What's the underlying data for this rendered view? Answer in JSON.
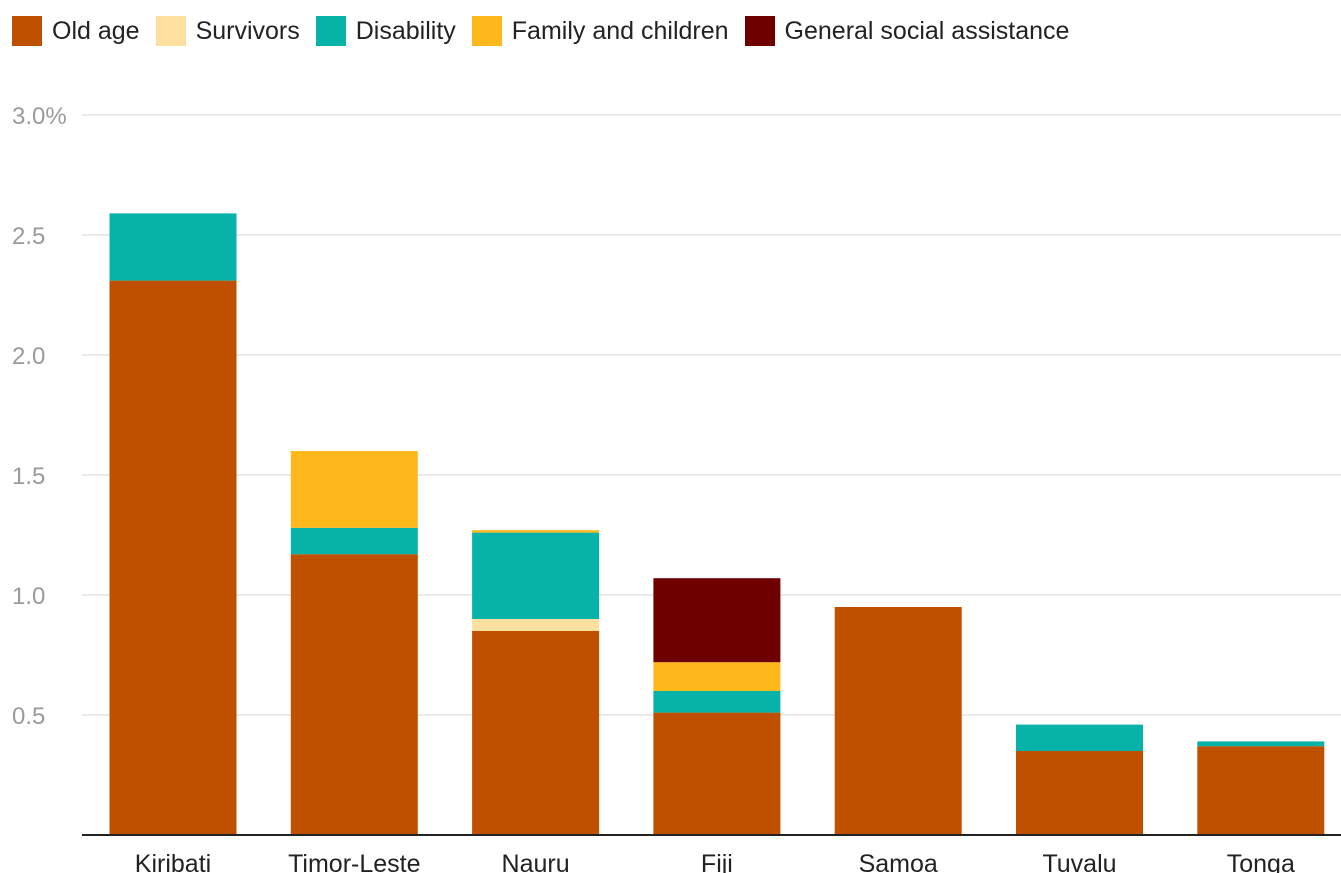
{
  "chart_data": {
    "type": "bar",
    "stacked": true,
    "title": "",
    "xlabel": "",
    "ylabel": "",
    "categories": [
      "Kiribati",
      "Timor-Leste",
      "Nauru",
      "Fiji",
      "Samoa",
      "Tuvalu",
      "Tonga"
    ],
    "series": [
      {
        "name": "Old age",
        "color": "#BF5000",
        "values": [
          2.31,
          1.17,
          0.85,
          0.51,
          0.95,
          0.35,
          0.37
        ]
      },
      {
        "name": "Survivors",
        "color": "#FDE0A0",
        "values": [
          0,
          0,
          0.05,
          0,
          0,
          0,
          0
        ]
      },
      {
        "name": "Disability",
        "color": "#07B3A8",
        "values": [
          0.28,
          0.11,
          0.36,
          0.09,
          0,
          0.11,
          0.02
        ]
      },
      {
        "name": "Family and children",
        "color": "#FEB81C",
        "values": [
          0,
          0.32,
          0.01,
          0.12,
          0,
          0,
          0
        ]
      },
      {
        "name": "General social assistance",
        "color": "#6E0000",
        "values": [
          0,
          0,
          0,
          0.35,
          0,
          0,
          0
        ]
      }
    ],
    "ylim": [
      0,
      3.0
    ],
    "yticks": [
      {
        "value": 3.0,
        "label": "3.0%"
      },
      {
        "value": 2.5,
        "label": "2.5"
      },
      {
        "value": 2.0,
        "label": "2.0"
      },
      {
        "value": 1.5,
        "label": "1.5"
      },
      {
        "value": 1.0,
        "label": "1.0"
      },
      {
        "value": 0.5,
        "label": "0.5"
      }
    ],
    "grid": true,
    "legend": "top-left"
  }
}
